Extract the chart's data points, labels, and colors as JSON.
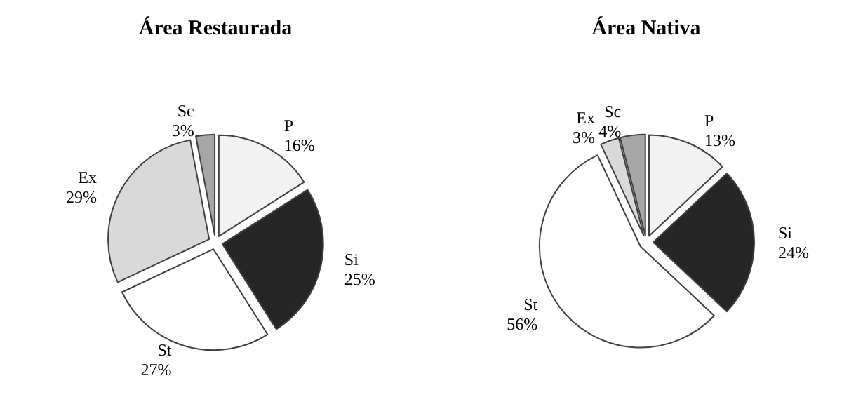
{
  "chart_data": [
    {
      "type": "pie",
      "title": "Área Restaurada",
      "categories": [
        "P",
        "Si",
        "St",
        "Ex",
        "Sc"
      ],
      "values": [
        16,
        25,
        27,
        29,
        3
      ],
      "colors": [
        "#f2f2f2",
        "#262626",
        "#ffffff",
        "#d9d9d9",
        "#a6a6a6"
      ],
      "value_labels": [
        "16%",
        "25%",
        "27%",
        "29%",
        "3%"
      ],
      "legend": false
    },
    {
      "type": "pie",
      "title": "Área Nativa",
      "categories": [
        "P",
        "Si",
        "St",
        "Ex",
        "Sc"
      ],
      "values": [
        13,
        24,
        56,
        3,
        4
      ],
      "colors": [
        "#f2f2f2",
        "#262626",
        "#ffffff",
        "#d9d9d9",
        "#a6a6a6"
      ],
      "value_labels": [
        "13%",
        "24%",
        "56%",
        "3%",
        "4%"
      ],
      "legend": false
    }
  ]
}
